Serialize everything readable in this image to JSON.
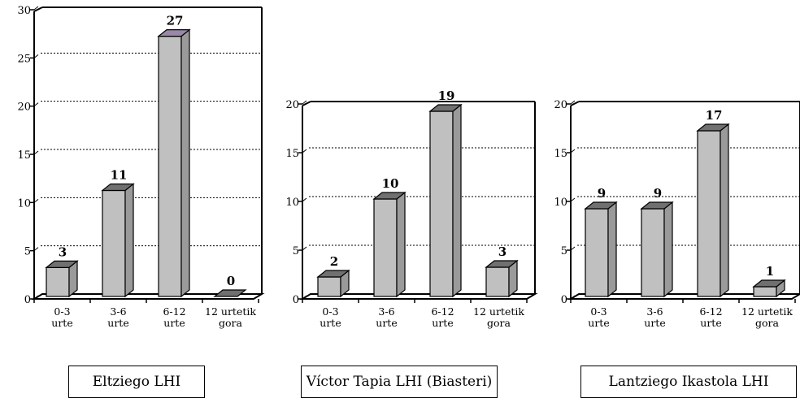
{
  "chart_data": [
    {
      "type": "bar",
      "title": "Eltziego LHI",
      "categories": [
        [
          "0-3",
          "urte"
        ],
        [
          "3-6",
          "urte"
        ],
        [
          "6-12",
          "urte"
        ],
        [
          "12 urtetik",
          "gora"
        ]
      ],
      "values": [
        3,
        11,
        27,
        0
      ],
      "data_labels": [
        "3",
        "11",
        "27",
        "0"
      ],
      "ylim": [
        0,
        30
      ],
      "yticks": [
        "0",
        "5",
        "10",
        "15",
        "20",
        "25",
        "30"
      ],
      "grid": true,
      "colors": {
        "bar": "#c0c0c0",
        "bar_top": "#707070",
        "bar_side": "#9a9a9a",
        "top_highlight": "#9a88a8"
      }
    },
    {
      "type": "bar",
      "title": "Víctor Tapia  LHI (Biasteri)",
      "categories": [
        [
          "0-3",
          "urte"
        ],
        [
          "3-6",
          "urte"
        ],
        [
          "6-12",
          "urte"
        ],
        [
          "12 urtetik",
          "gora"
        ]
      ],
      "values": [
        2,
        10,
        19,
        3
      ],
      "data_labels": [
        "2",
        "10",
        "19",
        "3"
      ],
      "ylim": [
        0,
        20
      ],
      "yticks": [
        "0",
        "5",
        "10",
        "15",
        "20"
      ],
      "grid": true,
      "colors": {
        "bar": "#c0c0c0",
        "bar_top": "#707070",
        "bar_side": "#9a9a9a"
      }
    },
    {
      "type": "bar",
      "title": "Lantziego Ikastola LHI",
      "categories": [
        [
          "0-3",
          "urte"
        ],
        [
          "3-6",
          "urte"
        ],
        [
          "6-12",
          "urte"
        ],
        [
          "12 urtetik",
          "gora"
        ]
      ],
      "values": [
        9,
        9,
        17,
        1
      ],
      "data_labels": [
        "9",
        "9",
        "17",
        "1"
      ],
      "ylim": [
        0,
        20
      ],
      "yticks": [
        "0",
        "5",
        "10",
        "15",
        "20"
      ],
      "grid": true,
      "colors": {
        "bar": "#c0c0c0",
        "bar_top": "#707070",
        "bar_side": "#9a9a9a"
      }
    }
  ]
}
